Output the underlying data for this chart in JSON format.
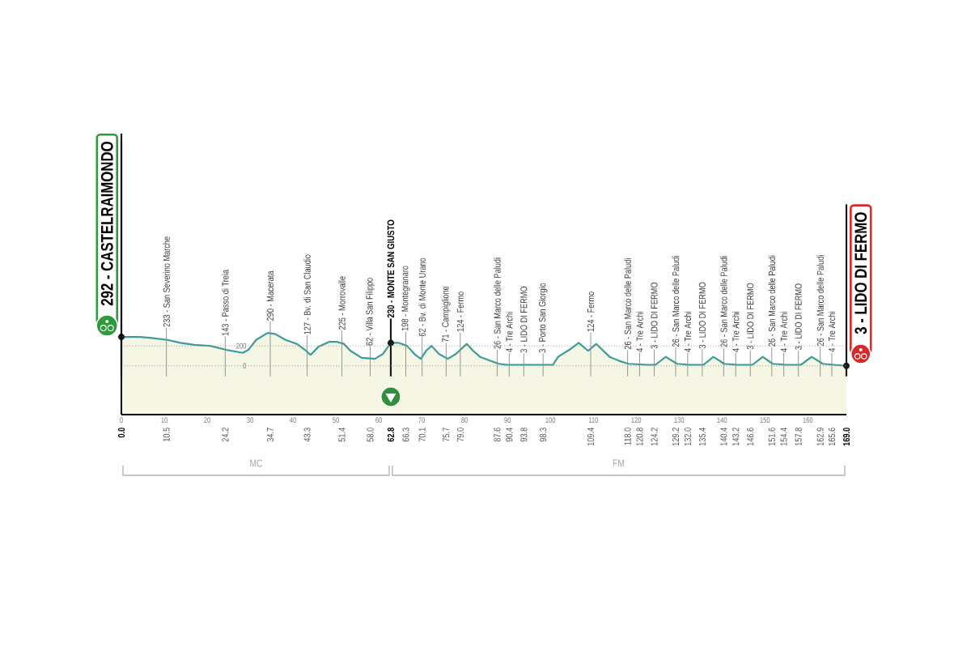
{
  "chart_data": {
    "type": "area",
    "x": [
      0,
      2,
      4.4,
      7,
      10.7,
      13.8,
      17,
      20.7,
      24.5,
      28.3,
      29.6,
      31.4,
      34.1,
      35.8,
      38.3,
      40.9,
      42.8,
      44.1,
      45.9,
      48.4,
      50.3,
      51.9,
      53.4,
      56.0,
      59.1,
      61.0,
      62.8,
      64.7,
      66.6,
      68.5,
      69.8,
      71.0,
      72.3,
      74.0,
      76.1,
      78.0,
      80.5,
      82.0,
      83.6,
      86.0,
      88.0,
      89.9,
      95.0,
      100.6,
      101.8,
      104.4,
      106.6,
      108.8,
      110.7,
      113.8,
      116.0,
      118.2,
      122.6,
      124.5,
      126.9,
      129.5,
      132.5,
      135.7,
      138.0,
      140.5,
      143.5,
      147.1,
      149.5,
      151.8,
      155.0,
      158.4,
      160.9,
      163.5,
      166.0,
      169.0
    ],
    "values": [
      290,
      290,
      290,
      280,
      260,
      230,
      210,
      200,
      160,
      130,
      160,
      260,
      330,
      320,
      260,
      220,
      160,
      110,
      190,
      240,
      240,
      220,
      150,
      80,
      70,
      120,
      230,
      230,
      200,
      110,
      70,
      150,
      200,
      120,
      70,
      120,
      220,
      150,
      90,
      50,
      20,
      10,
      10,
      10,
      90,
      160,
      230,
      150,
      220,
      90,
      50,
      20,
      10,
      10,
      90,
      20,
      10,
      10,
      90,
      20,
      10,
      10,
      90,
      20,
      10,
      10,
      90,
      20,
      10,
      0
    ],
    "color": "#3b9c9b",
    "xlim": [
      0,
      169
    ],
    "ylim": [
      -490,
      2250
    ],
    "xticks": [
      0,
      10,
      20,
      30,
      40,
      50,
      60,
      70,
      80,
      90,
      100,
      110,
      120,
      130,
      140,
      150,
      160
    ],
    "yticks": [
      0,
      200
    ],
    "grid": "y",
    "ref_lines": [
      {
        "axis": "x",
        "value": 0,
        "label": "292 - CASTELRAIMONDO",
        "color": "#1a1a1a"
      },
      {
        "axis": "x",
        "value": 10.5,
        "label": "233 - San Severino Marche",
        "color": "#8a8a8a"
      },
      {
        "axis": "x",
        "value": 24.2,
        "label": "143 - Passo di Treia",
        "color": "#8a8a8a"
      },
      {
        "axis": "x",
        "value": 34.7,
        "label": "290 - Macerata",
        "color": "#8a8a8a"
      },
      {
        "axis": "x",
        "value": 43.3,
        "label": "127 - Bv. di San Claudio",
        "color": "#8a8a8a"
      },
      {
        "axis": "x",
        "value": 51.4,
        "label": "225 - Morrovalle",
        "color": "#8a8a8a"
      },
      {
        "axis": "x",
        "value": 58.0,
        "label": "62 - Villa San Filippo",
        "color": "#8a8a8a"
      },
      {
        "axis": "x",
        "value": 62.8,
        "label": "230 - MONTE SAN GIUSTO",
        "color": "#1a1a1a"
      },
      {
        "axis": "x",
        "value": 66.3,
        "label": "198 - Montegranaro",
        "color": "#8a8a8a"
      },
      {
        "axis": "x",
        "value": 70.1,
        "label": "62 - Bv. di Monte Urano",
        "color": "#8a8a8a"
      },
      {
        "axis": "x",
        "value": 75.7,
        "label": "71 - Campiglione",
        "color": "#8a8a8a"
      },
      {
        "axis": "x",
        "value": 79.0,
        "label": "124 - Fermo",
        "color": "#8a8a8a"
      },
      {
        "axis": "x",
        "value": 87.6,
        "label": "26 - San Marco delle Paludi",
        "color": "#8a8a8a"
      },
      {
        "axis": "x",
        "value": 90.4,
        "label": "4 - Tre Archi",
        "color": "#8a8a8a"
      },
      {
        "axis": "x",
        "value": 93.8,
        "label": "3 - LIDO DI FERMO",
        "color": "#8a8a8a"
      },
      {
        "axis": "x",
        "value": 98.3,
        "label": "3 - Porto San Giorgio",
        "color": "#8a8a8a"
      },
      {
        "axis": "x",
        "value": 109.4,
        "label": "124 - Fermo",
        "color": "#8a8a8a"
      },
      {
        "axis": "x",
        "value": 118.0,
        "label": "26 - San Marco delle Paludi",
        "color": "#8a8a8a"
      },
      {
        "axis": "x",
        "value": 120.8,
        "label": "4 - Tre Archi",
        "color": "#8a8a8a"
      },
      {
        "axis": "x",
        "value": 124.2,
        "label": "3 - LIDO DI FERMO",
        "color": "#8a8a8a"
      },
      {
        "axis": "x",
        "value": 129.2,
        "label": "26 - San Marco delle Paludi",
        "color": "#8a8a8a"
      },
      {
        "axis": "x",
        "value": 132.0,
        "label": "4 - Tre Archi",
        "color": "#8a8a8a"
      },
      {
        "axis": "x",
        "value": 135.4,
        "label": "3 - LIDO DI FERMO",
        "color": "#8a8a8a"
      },
      {
        "axis": "x",
        "value": 140.4,
        "label": "26 - San Marco delle Paludi",
        "color": "#8a8a8a"
      },
      {
        "axis": "x",
        "value": 143.2,
        "label": "4 - Tre Archi",
        "color": "#8a8a8a"
      },
      {
        "axis": "x",
        "value": 146.6,
        "label": "3 - LIDO DI FERMO",
        "color": "#8a8a8a"
      },
      {
        "axis": "x",
        "value": 151.6,
        "label": "26 - San Marco delle Paludi",
        "color": "#8a8a8a"
      },
      {
        "axis": "x",
        "value": 154.4,
        "label": "4 - Tre Archi",
        "color": "#8a8a8a"
      },
      {
        "axis": "x",
        "value": 157.8,
        "label": "3 - LIDO DI FERMO",
        "color": "#8a8a8a"
      },
      {
        "axis": "x",
        "value": 162.9,
        "label": "26 - San Marco delle Paludi",
        "color": "#8a8a8a"
      },
      {
        "axis": "x",
        "value": 165.6,
        "label": "4 - Tre Archi",
        "color": "#8a8a8a"
      },
      {
        "axis": "x",
        "value": 169.0,
        "label": "3 - LIDO DI FERMO",
        "color": "#1a1a1a"
      }
    ],
    "bands": [
      {
        "axis": "y",
        "from": -490,
        "to": 0,
        "color": "#f6f6e4"
      }
    ],
    "annotations": [
      {
        "text": "0.0",
        "x": 0,
        "y": -490
      },
      {
        "text": "10.5",
        "x": 10.5,
        "y": -490
      },
      {
        "text": "24.2",
        "x": 24.2,
        "y": -490
      },
      {
        "text": "34.7",
        "x": 34.7,
        "y": -490
      },
      {
        "text": "43.3",
        "x": 43.3,
        "y": -490
      },
      {
        "text": "51.4",
        "x": 51.4,
        "y": -490
      },
      {
        "text": "58.0",
        "x": 58.0,
        "y": -490
      },
      {
        "text": "62.8",
        "x": 62.8,
        "y": -490
      },
      {
        "text": "66.3",
        "x": 66.3,
        "y": -490
      },
      {
        "text": "70.1",
        "x": 70.1,
        "y": -490
      },
      {
        "text": "75.7",
        "x": 75.7,
        "y": -490
      },
      {
        "text": "79.0",
        "x": 79.0,
        "y": -490
      },
      {
        "text": "87.6",
        "x": 87.6,
        "y": -490
      },
      {
        "text": "90.4",
        "x": 90.4,
        "y": -490
      },
      {
        "text": "93.8",
        "x": 93.8,
        "y": -490
      },
      {
        "text": "98.3",
        "x": 98.3,
        "y": -490
      },
      {
        "text": "109.4",
        "x": 109.4,
        "y": -490
      },
      {
        "text": "118.0",
        "x": 118.0,
        "y": -490
      },
      {
        "text": "120.8",
        "x": 120.8,
        "y": -490
      },
      {
        "text": "124.2",
        "x": 124.2,
        "y": -490
      },
      {
        "text": "129.2",
        "x": 129.2,
        "y": -490
      },
      {
        "text": "132.0",
        "x": 132.0,
        "y": -490
      },
      {
        "text": "135.4",
        "x": 135.4,
        "y": -490
      },
      {
        "text": "140.4",
        "x": 140.4,
        "y": -490
      },
      {
        "text": "143.2",
        "x": 143.2,
        "y": -490
      },
      {
        "text": "146.6",
        "x": 146.6,
        "y": -490
      },
      {
        "text": "151.6",
        "x": 151.6,
        "y": -490
      },
      {
        "text": "154.4",
        "x": 154.4,
        "y": -490
      },
      {
        "text": "157.8",
        "x": 157.8,
        "y": -490
      },
      {
        "text": "162.9",
        "x": 162.9,
        "y": -490
      },
      {
        "text": "165.6",
        "x": 165.6,
        "y": -490
      },
      {
        "text": "169.0",
        "x": 169.0,
        "y": -490
      },
      "MC",
      "FM"
    ]
  }
}
